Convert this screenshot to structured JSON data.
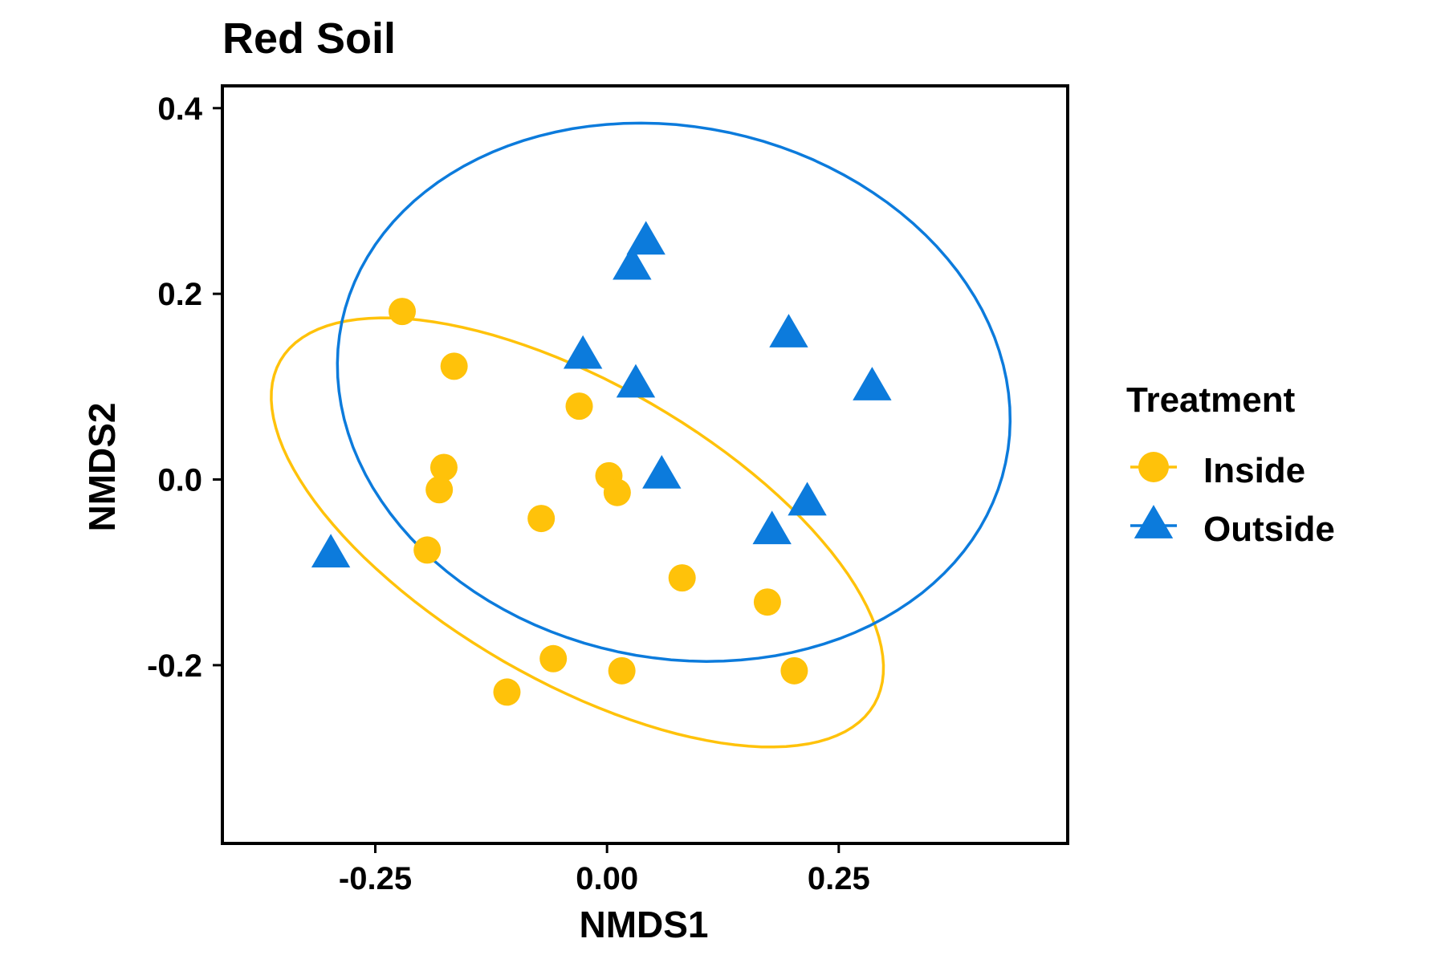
{
  "chart_data": {
    "type": "scatter",
    "title": "Red Soil",
    "xlabel": "NMDS1",
    "ylabel": "NMDS2",
    "xlim": [
      -0.415,
      0.497
    ],
    "ylim": [
      -0.392,
      0.424
    ],
    "xticks": [
      -0.25,
      0.0,
      0.25
    ],
    "xtick_labels": [
      "-0.25",
      "0.00",
      "0.25"
    ],
    "yticks": [
      0.4,
      0.2,
      0.0,
      -0.2
    ],
    "ytick_labels": [
      "0.4",
      "0.2",
      "0.0",
      "-0.2"
    ],
    "grid": false,
    "legend": {
      "title": "Treatment",
      "position": "right"
    },
    "series": [
      {
        "name": "Inside",
        "marker": "circle",
        "color": "#FFC20A",
        "points": [
          [
            -0.221,
            0.181
          ],
          [
            -0.165,
            0.122
          ],
          [
            -0.03,
            0.079
          ],
          [
            -0.176,
            0.013
          ],
          [
            -0.181,
            -0.011
          ],
          [
            0.002,
            0.004
          ],
          [
            0.011,
            -0.014
          ],
          [
            -0.071,
            -0.042
          ],
          [
            -0.194,
            -0.076
          ],
          [
            0.081,
            -0.106
          ],
          [
            0.173,
            -0.132
          ],
          [
            -0.058,
            -0.193
          ],
          [
            0.016,
            -0.206
          ],
          [
            0.202,
            -0.206
          ],
          [
            -0.108,
            -0.229
          ]
        ],
        "ellipse": {
          "center": [
            -0.032,
            -0.057
          ],
          "semi_axes": [
            0.37,
            0.16
          ],
          "angle_deg": -30
        }
      },
      {
        "name": "Outside",
        "marker": "triangle",
        "color": "#0C7BDC",
        "points": [
          [
            0.042,
            0.256
          ],
          [
            0.027,
            0.229
          ],
          [
            0.196,
            0.156
          ],
          [
            -0.026,
            0.133
          ],
          [
            0.286,
            0.099
          ],
          [
            0.031,
            0.102
          ],
          [
            0.059,
            0.004
          ],
          [
            0.216,
            -0.025
          ],
          [
            0.178,
            -0.056
          ],
          [
            -0.298,
            -0.081
          ]
        ],
        "ellipse": {
          "center": [
            0.072,
            0.094
          ],
          "semi_axes": [
            0.366,
            0.286
          ],
          "angle_deg": -12
        }
      }
    ]
  }
}
